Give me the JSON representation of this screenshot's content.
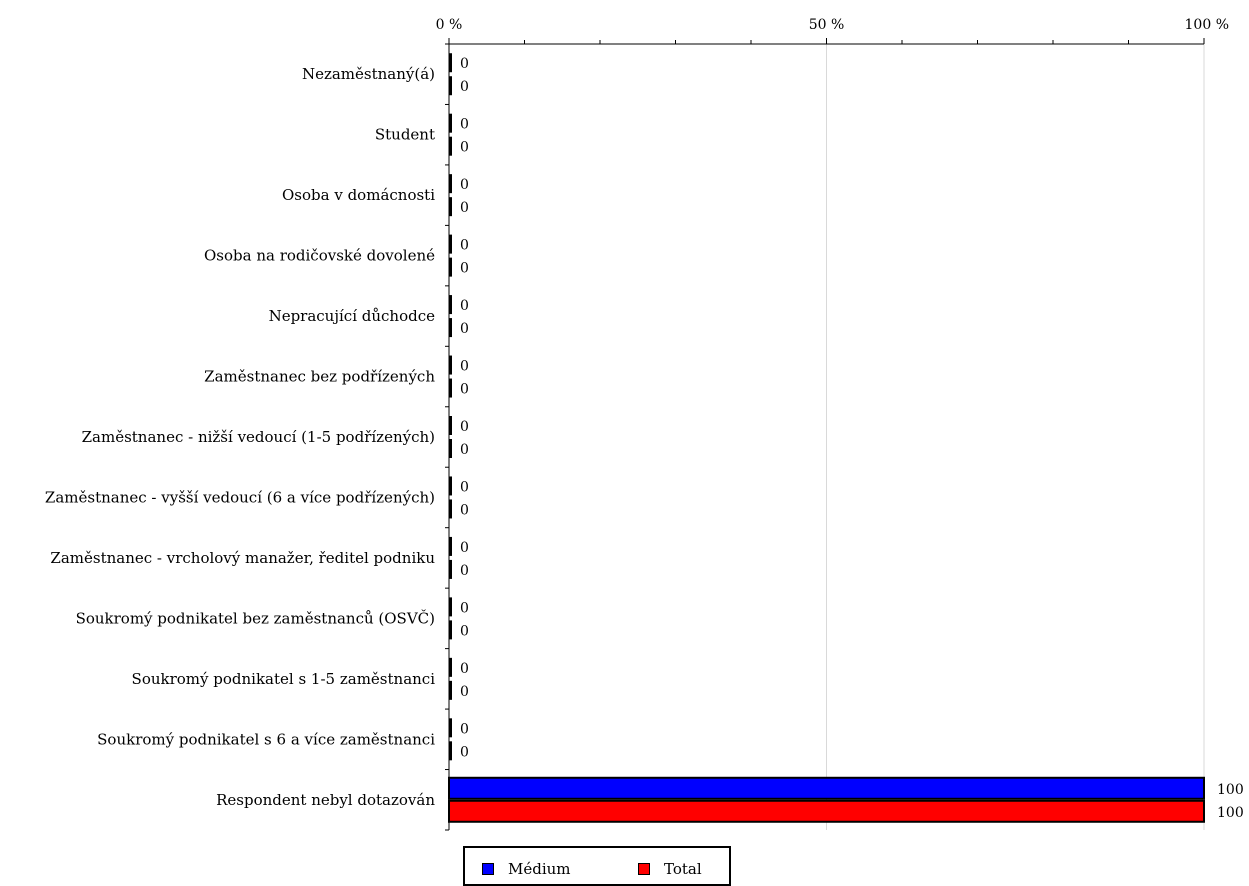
{
  "chart_data": {
    "type": "bar",
    "orientation": "horizontal",
    "categories": [
      "Nezaměstnaný(á)",
      "Student",
      "Osoba v domácnosti",
      "Osoba na rodičovské dovolené",
      "Nepracující důchodce",
      "Zaměstnanec bez podřízených",
      "Zaměstnanec - nižší vedoucí (1-5 podřízených)",
      "Zaměstnanec - vyšší vedoucí (6 a více podřízených)",
      "Zaměstnanec - vrcholový manažer, ředitel podniku",
      "Soukromý podnikatel bez zaměstnanců (OSVČ)",
      "Soukromý podnikatel s 1-5 zaměstnanci",
      "Soukromý podnikatel s 6 a více zaměstnanci",
      "Respondent nebyl dotazován"
    ],
    "series": [
      {
        "name": "Médium",
        "color": "#0000ff",
        "values": [
          0,
          0,
          0,
          0,
          0,
          0,
          0,
          0,
          0,
          0,
          0,
          0,
          100
        ]
      },
      {
        "name": "Total",
        "color": "#ff0000",
        "values": [
          0,
          0,
          0,
          0,
          0,
          0,
          0,
          0,
          0,
          0,
          0,
          0,
          100
        ]
      }
    ],
    "xlim": [
      0,
      100
    ],
    "x_ticks": [
      {
        "value": 0,
        "label": "0 %"
      },
      {
        "value": 50,
        "label": "50 %"
      },
      {
        "value": 100,
        "label": "100 %"
      }
    ],
    "minor_tick_step": 10,
    "grid": true,
    "legend_position": "bottom"
  }
}
